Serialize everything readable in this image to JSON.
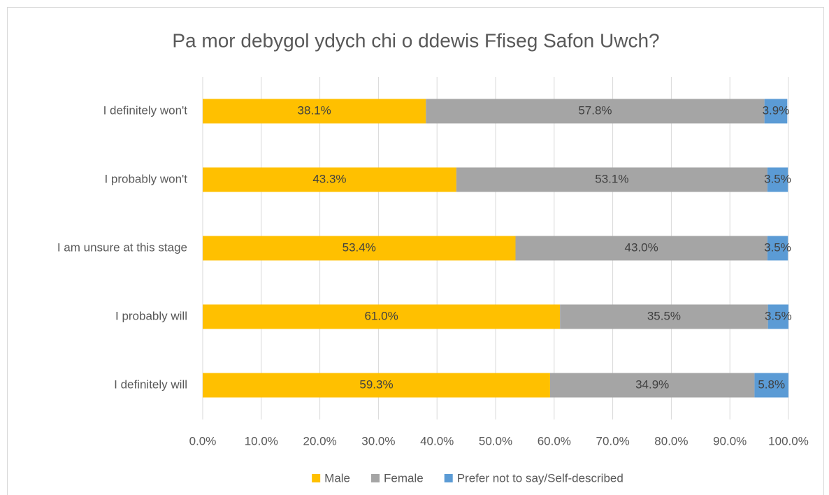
{
  "chart_data": {
    "type": "bar",
    "orientation": "horizontal",
    "stacked": true,
    "title": "Pa mor debygol ydych chi o ddewis Ffiseg Safon Uwch?",
    "categories": [
      "I definitely won't",
      "I probably won't",
      "I am unsure at this stage",
      "I probably will",
      "I definitely will"
    ],
    "series": [
      {
        "name": "Male",
        "color": "#FFC000",
        "values": [
          38.1,
          43.3,
          53.4,
          61.0,
          59.3
        ],
        "value_labels": [
          "38.1%",
          "43.3%",
          "53.4%",
          "61.0%",
          "59.3%"
        ]
      },
      {
        "name": "Female",
        "color": "#A5A5A5",
        "values": [
          57.8,
          53.1,
          43.0,
          35.5,
          34.9
        ],
        "value_labels": [
          "57.8%",
          "53.1%",
          "43.0%",
          "35.5%",
          "34.9%"
        ]
      },
      {
        "name": "Prefer not to say/Self-described",
        "color": "#5B9BD5",
        "values": [
          3.9,
          3.5,
          3.5,
          3.5,
          5.8
        ],
        "value_labels": [
          "3.9%",
          "3.5%",
          "3.5%",
          "3.5%",
          "5.8%"
        ]
      }
    ],
    "xlim": [
      0,
      100
    ],
    "xticks": [
      {
        "value": 0,
        "label": "0.0%"
      },
      {
        "value": 10,
        "label": "10.0%"
      },
      {
        "value": 20,
        "label": "20.0%"
      },
      {
        "value": 30,
        "label": "30.0%"
      },
      {
        "value": 40,
        "label": "40.0%"
      },
      {
        "value": 50,
        "label": "50.0%"
      },
      {
        "value": 60,
        "label": "60.0%"
      },
      {
        "value": 70,
        "label": "70.0%"
      },
      {
        "value": 80,
        "label": "80.0%"
      },
      {
        "value": 90,
        "label": "90.0%"
      },
      {
        "value": 100,
        "label": "100.0%"
      }
    ],
    "grid": true,
    "legend": "bottom"
  }
}
